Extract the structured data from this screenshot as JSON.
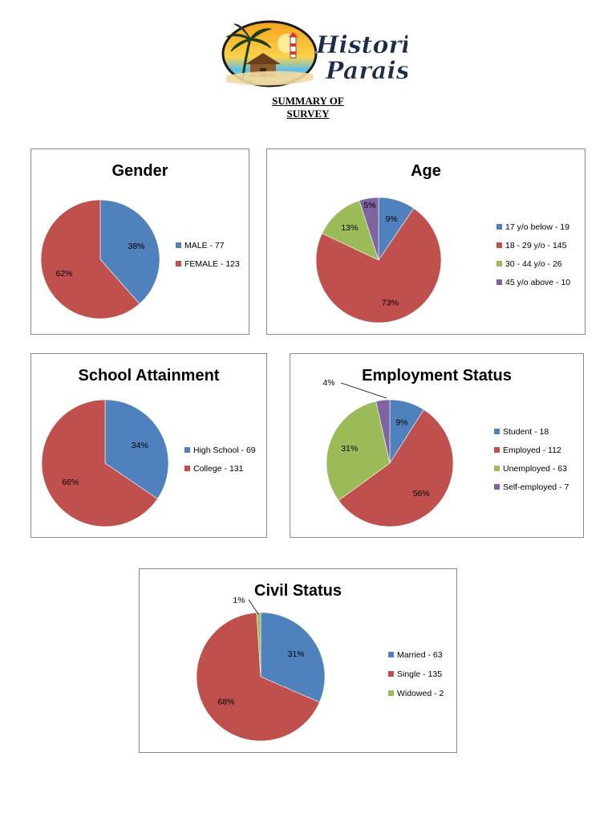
{
  "logo": {
    "brand_line1": "Historico",
    "brand_line2": "Paraiso"
  },
  "document": {
    "title_line1": "SUMMARY OF",
    "title_line2": "SURVEY"
  },
  "chart_data": [
    {
      "type": "pie",
      "title": "Gender",
      "labels": [
        "MALE - 77",
        "FEMALE - 123"
      ],
      "values": [
        77,
        123
      ],
      "percent_labels": [
        "38%",
        "62%"
      ],
      "colors": [
        "#4f81bd",
        "#c0504d"
      ],
      "legend_position": "right"
    },
    {
      "type": "pie",
      "title": "Age",
      "labels": [
        "17 y/o below - 19",
        "18 - 29 y/o - 145",
        "30 - 44 y/o - 26",
        "45 y/o above - 10"
      ],
      "values": [
        19,
        145,
        26,
        10
      ],
      "percent_labels": [
        "9%",
        "73%",
        "13%",
        "5%"
      ],
      "colors": [
        "#4f81bd",
        "#c0504d",
        "#9bbb59",
        "#8064a2"
      ],
      "legend_position": "right"
    },
    {
      "type": "pie",
      "title": "School Attainment",
      "labels": [
        "High School - 69",
        "College - 131"
      ],
      "values": [
        69,
        131
      ],
      "percent_labels": [
        "34%",
        "66%"
      ],
      "colors": [
        "#4f81bd",
        "#c0504d"
      ],
      "legend_position": "right"
    },
    {
      "type": "pie",
      "title": "Employment Status",
      "labels": [
        "Student - 18",
        "Employed - 112",
        "Unemployed - 63",
        "Self-employed - 7"
      ],
      "values": [
        18,
        112,
        63,
        7
      ],
      "percent_labels": [
        "9%",
        "56%",
        "31%",
        "4%"
      ],
      "colors": [
        "#4f81bd",
        "#c0504d",
        "#9bbb59",
        "#8064a2"
      ],
      "legend_position": "right"
    },
    {
      "type": "pie",
      "title": "Civil Status",
      "labels": [
        "Married - 63",
        "Single - 135",
        "Widowed - 2"
      ],
      "values": [
        63,
        135,
        2
      ],
      "percent_labels": [
        "31%",
        "68%",
        "1%"
      ],
      "colors": [
        "#4f81bd",
        "#c0504d",
        "#9bbb59"
      ],
      "legend_position": "right"
    }
  ]
}
